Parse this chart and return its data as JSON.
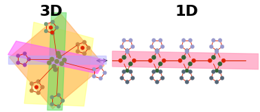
{
  "title_3d": "3D",
  "title_1d": "1D",
  "title_fontsize": 16,
  "title_fontweight": "bold",
  "bg_color": "#ffffff",
  "colors": {
    "light_blue": "#9999cc",
    "dark_grey": "#556677",
    "red": "#dd2200",
    "green": "#336633",
    "orange": "#cc8844",
    "purple": "#aa44aa",
    "teal": "#889988"
  }
}
